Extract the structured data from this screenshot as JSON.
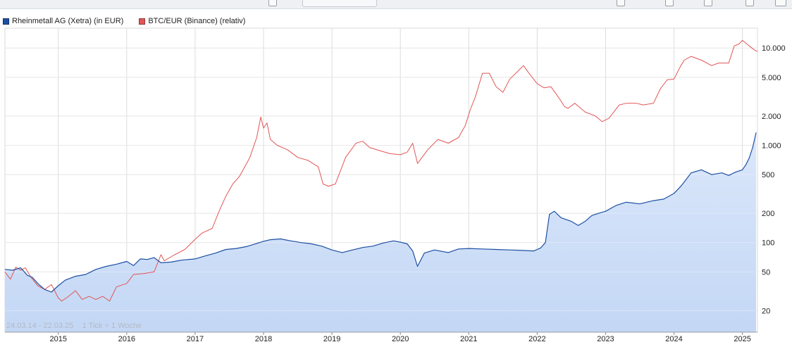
{
  "legend": {
    "items": [
      {
        "label": "Rheinmetall AG (Xetra) (in EUR)",
        "color": "#1d4fa3"
      },
      {
        "label": "BTC/EUR (Binance) (relativ)",
        "color": "#e25555"
      }
    ]
  },
  "footer": {
    "range": "24.03.14 - 22.03.25",
    "tick": "1 Tick = 1 Woche"
  },
  "toolbar": {
    "icons": [
      "window-icon",
      "tab-button",
      "zoom-icon",
      "zoom-icon",
      "tools-icon",
      "screen-icon",
      "screen-icon"
    ]
  },
  "chart_data": {
    "type": "line",
    "title": "",
    "xlabel": "",
    "ylabel": "",
    "yscale": "log",
    "xlim": [
      2014.22,
      2025.22
    ],
    "ylim": [
      12,
      16000
    ],
    "grid": true,
    "legend_position": "top-left",
    "x_ticks": [
      {
        "label": "2015",
        "value": 2015
      },
      {
        "label": "2016",
        "value": 2016
      },
      {
        "label": "2017",
        "value": 2017
      },
      {
        "label": "2018",
        "value": 2018
      },
      {
        "label": "2019",
        "value": 2019
      },
      {
        "label": "2020",
        "value": 2020
      },
      {
        "label": "2021",
        "value": 2021
      },
      {
        "label": "2022",
        "value": 2022
      },
      {
        "label": "2023",
        "value": 2023
      },
      {
        "label": "2024",
        "value": 2024
      },
      {
        "label": "2025",
        "value": 2025
      }
    ],
    "y_ticks": [
      {
        "label": "10.000",
        "value": 10000
      },
      {
        "label": "5.000",
        "value": 5000
      },
      {
        "label": "2.000",
        "value": 2000
      },
      {
        "label": "1.000",
        "value": 1000
      },
      {
        "label": "500",
        "value": 500
      },
      {
        "label": "200",
        "value": 200
      },
      {
        "label": "100",
        "value": 100
      },
      {
        "label": "50",
        "value": 50
      },
      {
        "label": "20",
        "value": 20
      }
    ],
    "series": [
      {
        "name": "Rheinmetall AG (Xetra) (in EUR)",
        "color": "#1d4fa3",
        "fill": "#c3d7f5",
        "x": [
          2014.22,
          2014.33,
          2014.45,
          2014.55,
          2014.62,
          2014.7,
          2014.8,
          2014.9,
          2015.0,
          2015.1,
          2015.25,
          2015.4,
          2015.55,
          2015.7,
          2015.85,
          2016.0,
          2016.1,
          2016.2,
          2016.3,
          2016.4,
          2016.5,
          2016.65,
          2016.8,
          2017.0,
          2017.15,
          2017.3,
          2017.45,
          2017.6,
          2017.75,
          2017.9,
          2018.0,
          2018.1,
          2018.25,
          2018.4,
          2018.55,
          2018.7,
          2018.85,
          2019.0,
          2019.15,
          2019.3,
          2019.45,
          2019.6,
          2019.75,
          2019.9,
          2020.0,
          2020.1,
          2020.18,
          2020.25,
          2020.35,
          2020.5,
          2020.7,
          2020.85,
          2021.0,
          2021.2,
          2021.4,
          2021.6,
          2021.8,
          2021.95,
          2022.05,
          2022.12,
          2022.18,
          2022.25,
          2022.35,
          2022.5,
          2022.6,
          2022.7,
          2022.8,
          2022.9,
          2023.0,
          2023.15,
          2023.3,
          2023.5,
          2023.7,
          2023.85,
          2024.0,
          2024.1,
          2024.15,
          2024.25,
          2024.4,
          2024.55,
          2024.7,
          2024.8,
          2024.9,
          2025.0,
          2025.05,
          2025.1,
          2025.15,
          2025.2
        ],
        "y": [
          53,
          52,
          55,
          46,
          44,
          38,
          33,
          31,
          36,
          41,
          45,
          47,
          53,
          57,
          60,
          64,
          58,
          68,
          67,
          70,
          62,
          63,
          66,
          68,
          73,
          78,
          85,
          87,
          91,
          98,
          103,
          107,
          109,
          104,
          100,
          97,
          92,
          84,
          79,
          84,
          89,
          92,
          99,
          104,
          101,
          97,
          82,
          57,
          78,
          84,
          79,
          86,
          87,
          86,
          85,
          84,
          83,
          82,
          88,
          100,
          195,
          210,
          180,
          165,
          150,
          165,
          190,
          200,
          210,
          240,
          260,
          250,
          270,
          280,
          320,
          380,
          420,
          520,
          560,
          500,
          520,
          490,
          530,
          560,
          630,
          740,
          950,
          1350
        ]
      },
      {
        "name": "BTC/EUR (Binance) (relativ)",
        "color": "#e25555",
        "x": [
          2014.22,
          2014.3,
          2014.38,
          2014.45,
          2014.52,
          2014.6,
          2014.7,
          2014.8,
          2014.9,
          2015.0,
          2015.05,
          2015.15,
          2015.25,
          2015.35,
          2015.45,
          2015.55,
          2015.65,
          2015.75,
          2015.85,
          2016.0,
          2016.1,
          2016.25,
          2016.4,
          2016.5,
          2016.55,
          2016.7,
          2016.85,
          2017.0,
          2017.1,
          2017.25,
          2017.35,
          2017.45,
          2017.55,
          2017.65,
          2017.8,
          2017.9,
          2017.96,
          2018.0,
          2018.05,
          2018.1,
          2018.2,
          2018.35,
          2018.5,
          2018.65,
          2018.8,
          2018.87,
          2018.95,
          2019.05,
          2019.2,
          2019.35,
          2019.45,
          2019.55,
          2019.7,
          2019.85,
          2020.0,
          2020.1,
          2020.18,
          2020.25,
          2020.4,
          2020.55,
          2020.7,
          2020.85,
          2020.95,
          2021.02,
          2021.1,
          2021.2,
          2021.3,
          2021.4,
          2021.5,
          2021.6,
          2021.7,
          2021.8,
          2021.88,
          2022.0,
          2022.1,
          2022.2,
          2022.3,
          2022.4,
          2022.45,
          2022.55,
          2022.7,
          2022.85,
          2022.95,
          2023.05,
          2023.2,
          2023.3,
          2023.45,
          2023.55,
          2023.7,
          2023.8,
          2023.9,
          2024.0,
          2024.1,
          2024.15,
          2024.25,
          2024.4,
          2024.55,
          2024.65,
          2024.8,
          2024.88,
          2024.95,
          2025.0,
          2025.1,
          2025.18,
          2025.22
        ],
        "y": [
          50,
          42,
          56,
          52,
          55,
          44,
          36,
          33,
          37,
          27,
          25,
          28,
          32,
          26,
          28,
          26,
          28,
          25,
          35,
          38,
          47,
          48,
          50,
          75,
          65,
          75,
          85,
          108,
          125,
          140,
          210,
          300,
          400,
          480,
          750,
          1200,
          1950,
          1500,
          1700,
          1150,
          1000,
          900,
          750,
          700,
          600,
          400,
          380,
          400,
          750,
          1050,
          1100,
          950,
          880,
          820,
          800,
          850,
          1050,
          650,
          900,
          1150,
          1050,
          1200,
          1600,
          2300,
          3200,
          5500,
          5500,
          4000,
          3500,
          4800,
          5600,
          6600,
          5500,
          4300,
          3900,
          4000,
          3200,
          2500,
          2400,
          2700,
          2200,
          2000,
          1750,
          1900,
          2600,
          2700,
          2700,
          2600,
          2700,
          3800,
          4700,
          4800,
          6600,
          7500,
          8200,
          7500,
          6600,
          7000,
          7000,
          10500,
          11000,
          12000,
          10500,
          9500,
          9200
        ]
      }
    ]
  }
}
